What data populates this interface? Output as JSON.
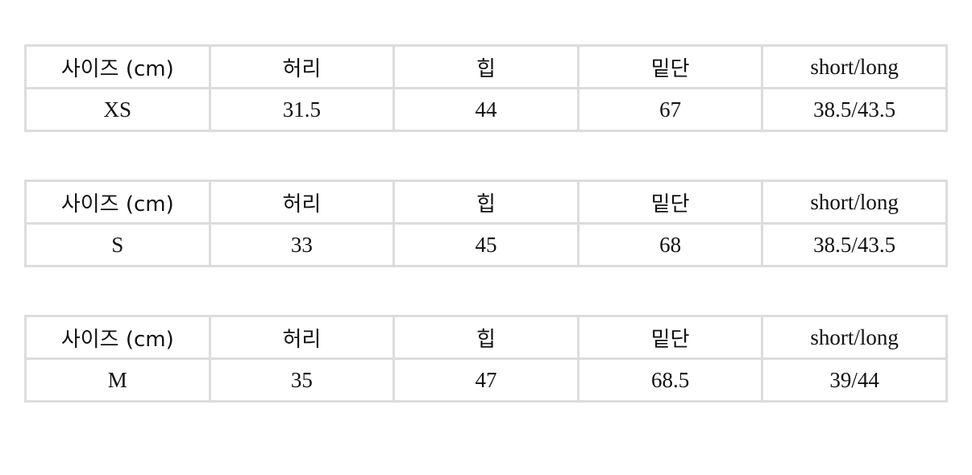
{
  "headers": {
    "size": "사이즈 (cm)",
    "waist": "허리",
    "hip": "힙",
    "hem": "밑단",
    "length": "short/long"
  },
  "tables": [
    {
      "size": "XS",
      "waist": "31.5",
      "hip": "44",
      "hem": "67",
      "length": "38.5/43.5"
    },
    {
      "size": "S",
      "waist": "33",
      "hip": "45",
      "hem": "68",
      "length": "38.5/43.5"
    },
    {
      "size": "M",
      "waist": "35",
      "hip": "47",
      "hem": "68.5",
      "length": "39/44"
    }
  ]
}
